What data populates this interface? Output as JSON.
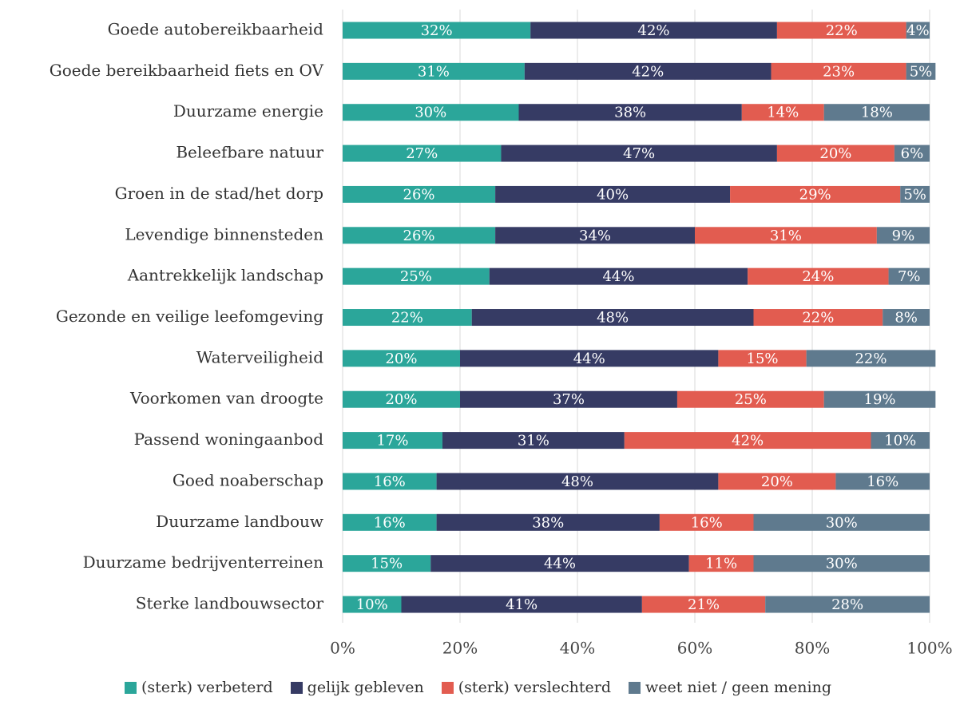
{
  "chart_data": {
    "type": "stacked_barh",
    "categories": [
      "Goede autobereikbaarheid",
      "Goede bereikbaarheid fiets en OV",
      "Duurzame energie",
      "Beleefbare natuur",
      "Groen in de stad/het dorp",
      "Levendige binnensteden",
      "Aantrekkelijk landschap",
      "Gezonde en veilige leefomgeving",
      "Waterveiligheid",
      "Voorkomen van droogte",
      "Passend woningaanbod",
      "Goed noaberschap",
      "Duurzame landbouw",
      "Duurzame bedrijventerreinen",
      "Sterke landbouwsector"
    ],
    "series": [
      {
        "name": "(sterk) verbeterd",
        "color": "#2ba69a",
        "values": [
          32,
          31,
          30,
          27,
          26,
          26,
          25,
          22,
          20,
          20,
          17,
          16,
          16,
          15,
          10
        ],
        "value_labels": [
          "32%",
          "31%",
          "30%",
          "27%",
          "26%",
          "26%",
          "25%",
          "22%",
          "20%",
          "20%",
          "17%",
          "16%",
          "16%",
          "15%",
          "10%"
        ]
      },
      {
        "name": "gelijk gebleven",
        "color": "#363b64",
        "values": [
          42,
          42,
          38,
          47,
          40,
          34,
          44,
          48,
          44,
          37,
          31,
          48,
          38,
          44,
          41
        ],
        "value_labels": [
          "42%",
          "42%",
          "38%",
          "47%",
          "40%",
          "34%",
          "44%",
          "48%",
          "44%",
          "37%",
          "31%",
          "48%",
          "38%",
          "44%",
          "41%"
        ]
      },
      {
        "name": "(sterk) verslechterd",
        "color": "#e25c50",
        "values": [
          22,
          23,
          14,
          20,
          29,
          31,
          24,
          22,
          15,
          25,
          42,
          20,
          16,
          11,
          21
        ],
        "value_labels": [
          "22%",
          "23%",
          "14%",
          "20%",
          "29%",
          "31%",
          "24%",
          "22%",
          "15%",
          "25%",
          "42%",
          "20%",
          "16%",
          "11%",
          "21%"
        ]
      },
      {
        "name": "weet niet / geen mening",
        "color": "#5f7a8e",
        "values": [
          4,
          5,
          18,
          6,
          5,
          9,
          7,
          8,
          22,
          19,
          10,
          16,
          30,
          30,
          28
        ],
        "value_labels": [
          "4%",
          "5%",
          "18%",
          "6%",
          "5%",
          "9%",
          "7%",
          "8%",
          "22%",
          "19%",
          "10%",
          "16%",
          "30%",
          "30%",
          "28%"
        ]
      }
    ],
    "xlim": [
      0,
      100
    ],
    "xticks": [
      {
        "value": 0,
        "label": "0%"
      },
      {
        "value": 20,
        "label": "20%"
      },
      {
        "value": 40,
        "label": "40%"
      },
      {
        "value": 60,
        "label": "60%"
      },
      {
        "value": 80,
        "label": "80%"
      },
      {
        "value": 100,
        "label": "100%"
      }
    ],
    "grid": true,
    "legend": "bottom"
  }
}
